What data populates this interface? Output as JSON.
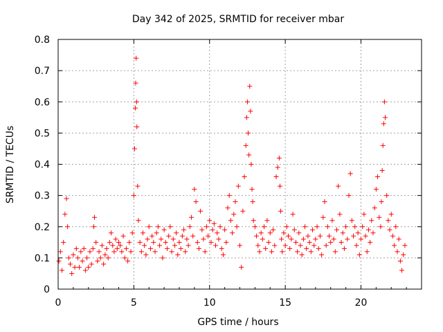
{
  "chart_data": {
    "type": "scatter",
    "title": "Day 342 of 2025, SRMTID for receiver mbar",
    "xlabel": "GPS time / hours",
    "ylabel": "SRMTID / TECUs",
    "xlim": [
      0,
      24
    ],
    "ylim": [
      0,
      0.8
    ],
    "x_ticks": [
      0,
      5,
      10,
      15,
      20
    ],
    "x_tick_labels": [
      "0",
      "5",
      "10",
      "15",
      "20"
    ],
    "y_ticks": [
      0,
      0.1,
      0.2,
      0.3,
      0.4,
      0.5,
      0.6,
      0.7,
      0.8
    ],
    "y_tick_labels": [
      "0",
      "0.1",
      "0.2",
      "0.3",
      "0.4",
      "0.5",
      "0.6",
      "0.7",
      "0.8"
    ],
    "grid": true,
    "marker": "plus",
    "colors": {
      "points": "#ff0000",
      "grid": "#a0a0a0",
      "axes": "#000000"
    },
    "series": [
      {
        "name": "mbar",
        "x": [
          0.05,
          0.15,
          0.25,
          0.35,
          0.45,
          0.55,
          0.62,
          0.7,
          0.8,
          0.9,
          1.0,
          1.1,
          1.2,
          1.3,
          1.4,
          1.5,
          1.6,
          1.7,
          1.8,
          1.9,
          2.0,
          2.1,
          2.2,
          2.3,
          2.35,
          2.4,
          2.5,
          2.6,
          2.7,
          2.8,
          2.9,
          3.0,
          3.1,
          3.2,
          3.3,
          3.4,
          3.5,
          3.6,
          3.7,
          3.8,
          3.9,
          4.0,
          4.1,
          4.2,
          4.3,
          4.4,
          4.5,
          4.6,
          4.7,
          4.8,
          4.9,
          5.0,
          5.05,
          5.1,
          5.12,
          5.15,
          5.18,
          5.2,
          5.25,
          5.3,
          5.4,
          5.5,
          5.6,
          5.7,
          5.8,
          5.9,
          6.0,
          6.1,
          6.2,
          6.3,
          6.4,
          6.5,
          6.6,
          6.7,
          6.8,
          6.9,
          7.0,
          7.1,
          7.2,
          7.3,
          7.4,
          7.5,
          7.6,
          7.7,
          7.8,
          7.9,
          8.0,
          8.1,
          8.2,
          8.3,
          8.4,
          8.5,
          8.6,
          8.7,
          8.8,
          8.9,
          9.0,
          9.1,
          9.2,
          9.3,
          9.4,
          9.5,
          9.6,
          9.7,
          9.8,
          9.9,
          10.0,
          10.1,
          10.2,
          10.3,
          10.4,
          10.5,
          10.6,
          10.7,
          10.8,
          10.9,
          11.0,
          11.1,
          11.2,
          11.3,
          11.4,
          11.5,
          11.6,
          11.7,
          11.8,
          11.9,
          12.0,
          12.1,
          12.2,
          12.3,
          12.4,
          12.45,
          12.5,
          12.55,
          12.6,
          12.65,
          12.7,
          12.75,
          12.8,
          12.85,
          12.9,
          13.0,
          13.1,
          13.2,
          13.3,
          13.4,
          13.5,
          13.6,
          13.7,
          13.8,
          13.9,
          14.0,
          14.1,
          14.2,
          14.3,
          14.4,
          14.5,
          14.6,
          14.65,
          14.7,
          14.75,
          14.8,
          14.9,
          15.0,
          15.1,
          15.2,
          15.3,
          15.4,
          15.5,
          15.6,
          15.7,
          15.8,
          15.9,
          16.0,
          16.1,
          16.2,
          16.3,
          16.4,
          16.5,
          16.6,
          16.7,
          16.8,
          16.9,
          17.0,
          17.1,
          17.2,
          17.3,
          17.4,
          17.5,
          17.6,
          17.7,
          17.8,
          17.9,
          18.0,
          18.1,
          18.2,
          18.3,
          18.4,
          18.5,
          18.6,
          18.7,
          18.8,
          18.9,
          19.0,
          19.1,
          19.2,
          19.3,
          19.4,
          19.5,
          19.6,
          19.7,
          19.8,
          19.9,
          20.0,
          20.1,
          20.2,
          20.3,
          20.4,
          20.5,
          20.6,
          20.7,
          20.8,
          20.9,
          21.0,
          21.1,
          21.2,
          21.3,
          21.35,
          21.4,
          21.45,
          21.5,
          21.55,
          21.6,
          21.7,
          21.8,
          21.9,
          22.0,
          22.1,
          22.2,
          22.3,
          22.4,
          22.5,
          22.6,
          22.7,
          22.8,
          22.9
        ],
        "y": [
          0.09,
          0.12,
          0.06,
          0.15,
          0.24,
          0.29,
          0.2,
          0.1,
          0.08,
          0.05,
          0.11,
          0.07,
          0.13,
          0.1,
          0.07,
          0.12,
          0.09,
          0.13,
          0.06,
          0.1,
          0.07,
          0.12,
          0.08,
          0.13,
          0.2,
          0.23,
          0.15,
          0.09,
          0.12,
          0.1,
          0.14,
          0.08,
          0.11,
          0.13,
          0.1,
          0.15,
          0.18,
          0.14,
          0.12,
          0.16,
          0.13,
          0.15,
          0.14,
          0.12,
          0.17,
          0.1,
          0.13,
          0.09,
          0.15,
          0.12,
          0.18,
          0.3,
          0.45,
          0.58,
          0.66,
          0.74,
          0.6,
          0.52,
          0.33,
          0.22,
          0.15,
          0.12,
          0.18,
          0.14,
          0.11,
          0.16,
          0.2,
          0.13,
          0.17,
          0.15,
          0.12,
          0.18,
          0.2,
          0.14,
          0.16,
          0.1,
          0.19,
          0.15,
          0.13,
          0.17,
          0.2,
          0.12,
          0.16,
          0.14,
          0.18,
          0.11,
          0.15,
          0.13,
          0.17,
          0.19,
          0.12,
          0.16,
          0.14,
          0.2,
          0.23,
          0.17,
          0.32,
          0.28,
          0.15,
          0.13,
          0.25,
          0.19,
          0.16,
          0.12,
          0.2,
          0.17,
          0.22,
          0.15,
          0.19,
          0.21,
          0.14,
          0.18,
          0.16,
          0.2,
          0.13,
          0.11,
          0.19,
          0.15,
          0.26,
          0.3,
          0.22,
          0.18,
          0.24,
          0.28,
          0.2,
          0.33,
          0.14,
          0.07,
          0.25,
          0.36,
          0.46,
          0.55,
          0.6,
          0.5,
          0.43,
          0.65,
          0.57,
          0.4,
          0.32,
          0.28,
          0.22,
          0.2,
          0.17,
          0.14,
          0.12,
          0.18,
          0.16,
          0.2,
          0.13,
          0.22,
          0.15,
          0.18,
          0.12,
          0.19,
          0.14,
          0.36,
          0.39,
          0.42,
          0.33,
          0.25,
          0.16,
          0.12,
          0.18,
          0.14,
          0.2,
          0.17,
          0.13,
          0.16,
          0.24,
          0.19,
          0.15,
          0.12,
          0.18,
          0.14,
          0.11,
          0.16,
          0.2,
          0.13,
          0.17,
          0.15,
          0.12,
          0.19,
          0.14,
          0.16,
          0.2,
          0.13,
          0.17,
          0.11,
          0.23,
          0.28,
          0.14,
          0.2,
          0.17,
          0.15,
          0.22,
          0.16,
          0.12,
          0.19,
          0.33,
          0.24,
          0.15,
          0.18,
          0.13,
          0.2,
          0.16,
          0.3,
          0.37,
          0.22,
          0.17,
          0.2,
          0.14,
          0.18,
          0.11,
          0.16,
          0.2,
          0.24,
          0.17,
          0.12,
          0.19,
          0.15,
          0.22,
          0.18,
          0.26,
          0.32,
          0.36,
          0.23,
          0.2,
          0.28,
          0.38,
          0.46,
          0.53,
          0.6,
          0.55,
          0.3,
          0.22,
          0.19,
          0.24,
          0.17,
          0.14,
          0.2,
          0.12,
          0.16,
          0.09,
          0.06,
          0.11,
          0.14
        ]
      }
    ]
  }
}
